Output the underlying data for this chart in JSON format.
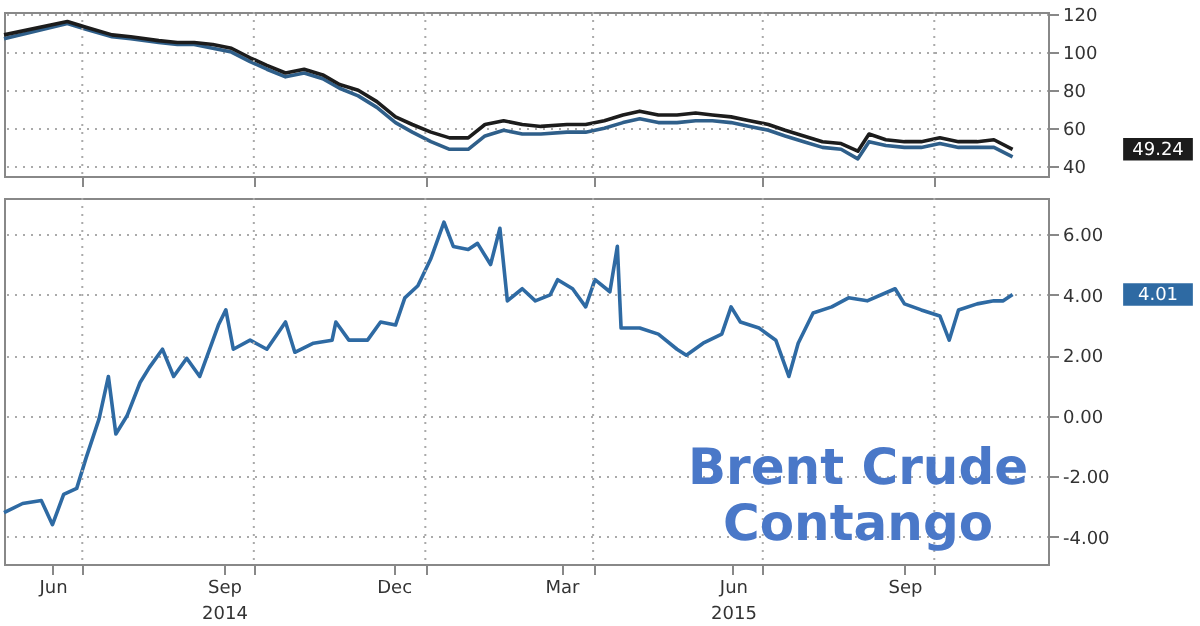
{
  "chart_data": [
    {
      "type": "line",
      "x": [
        "2014-05-20",
        "2014-06-23",
        "2014-07-03",
        "2014-07-17",
        "2014-07-27",
        "2014-08-11",
        "2014-08-21",
        "2014-08-30",
        "2014-09-09",
        "2014-09-19",
        "2014-09-29",
        "2014-10-08",
        "2014-10-18",
        "2014-10-28",
        "2014-11-07",
        "2014-11-16",
        "2014-11-26",
        "2014-12-06",
        "2014-12-16",
        "2014-12-25",
        "2015-01-04",
        "2015-01-14",
        "2015-01-24",
        "2015-02-02",
        "2015-02-12",
        "2015-02-22",
        "2015-03-04",
        "2015-03-18",
        "2015-03-28",
        "2015-04-07",
        "2015-04-17",
        "2015-04-26",
        "2015-05-06",
        "2015-05-16",
        "2015-05-26",
        "2015-06-04",
        "2015-06-14",
        "2015-06-24",
        "2015-07-04",
        "2015-07-13",
        "2015-07-23",
        "2015-08-02",
        "2015-08-12",
        "2015-08-21",
        "2015-08-27",
        "2015-09-05",
        "2015-09-15",
        "2015-09-24",
        "2015-10-04",
        "2015-10-14",
        "2015-10-24",
        "2015-11-02",
        "2015-11-12"
      ],
      "series": [
        {
          "color": "#2f5f8a",
          "values": [
            107,
            115,
            112,
            108,
            107,
            105,
            104,
            104,
            102,
            100,
            95,
            91,
            87,
            89,
            86,
            81,
            77,
            71,
            63,
            58,
            53,
            49,
            49,
            56,
            59,
            57,
            57,
            58,
            58,
            60,
            63,
            65,
            63,
            63,
            64,
            64,
            63,
            61,
            59,
            56,
            53,
            50,
            49,
            44,
            53,
            51,
            50,
            50,
            52,
            50,
            50,
            50,
            45
          ]
        },
        {
          "color": "#1c1c1c",
          "values": [
            109,
            116,
            113,
            109,
            108,
            106,
            105,
            105,
            104,
            102,
            97,
            93,
            89,
            91,
            88,
            83,
            80,
            74,
            66,
            62,
            58,
            55,
            55,
            62,
            64,
            62,
            61,
            62,
            62,
            64,
            67,
            69,
            67,
            67,
            68,
            67,
            66,
            64,
            62,
            59,
            56,
            53,
            52,
            48,
            57,
            54,
            53,
            53,
            55,
            53,
            53,
            54,
            49
          ]
        }
      ],
      "xlim": [
        "2014-05-20",
        "2015-12-01"
      ],
      "ylim": [
        35,
        121
      ],
      "yticks": [
        40,
        60,
        80,
        100,
        120
      ],
      "xticks": [
        {
          "value": "2014-07-01",
          "label": null
        },
        {
          "value": "2014-10-01",
          "label": null
        },
        {
          "value": "2015-01-01",
          "label": null
        },
        {
          "value": "2015-04-01",
          "label": null
        },
        {
          "value": "2015-07-01",
          "label": null
        },
        {
          "value": "2015-10-01",
          "label": null
        }
      ],
      "grid": true,
      "tick_labels": "y",
      "annotations": [
        "49.24"
      ]
    },
    {
      "type": "line",
      "x": [
        "2014-05-20",
        "2014-05-30",
        "2014-06-09",
        "2014-06-15",
        "2014-06-21",
        "2014-06-28",
        "2014-07-03",
        "2014-07-10",
        "2014-07-15",
        "2014-07-19",
        "2014-07-25",
        "2014-08-01",
        "2014-08-06",
        "2014-08-13",
        "2014-08-19",
        "2014-08-26",
        "2014-09-02",
        "2014-09-12",
        "2014-09-16",
        "2014-09-20",
        "2014-09-29",
        "2014-10-08",
        "2014-10-18",
        "2014-10-23",
        "2014-11-02",
        "2014-11-12",
        "2014-11-14",
        "2014-11-21",
        "2014-12-01",
        "2014-12-08",
        "2014-12-16",
        "2014-12-21",
        "2014-12-28",
        "2015-01-04",
        "2015-01-11",
        "2015-01-16",
        "2015-01-24",
        "2015-01-29",
        "2015-02-05",
        "2015-02-10",
        "2015-02-14",
        "2015-02-22",
        "2015-03-01",
        "2015-03-09",
        "2015-03-13",
        "2015-03-21",
        "2015-03-28",
        "2015-04-02",
        "2015-04-10",
        "2015-04-14",
        "2015-04-16",
        "2015-04-26",
        "2015-05-06",
        "2015-05-16",
        "2015-05-21",
        "2015-05-30",
        "2015-06-09",
        "2015-06-14",
        "2015-06-19",
        "2015-06-29",
        "2015-07-08",
        "2015-07-15",
        "2015-07-20",
        "2015-07-28",
        "2015-08-07",
        "2015-08-16",
        "2015-08-26",
        "2015-09-10",
        "2015-09-15",
        "2015-09-24",
        "2015-10-04",
        "2015-10-09",
        "2015-10-14",
        "2015-10-24",
        "2015-11-02",
        "2015-11-07",
        "2015-11-12"
      ],
      "series": [
        {
          "color": "#2e6aa3",
          "values": [
            -3.2,
            -2.9,
            -2.8,
            -3.6,
            -2.6,
            -2.4,
            -1.4,
            -0.1,
            1.3,
            -0.6,
            0,
            1.1,
            1.6,
            2.2,
            1.3,
            1.9,
            1.3,
            3.0,
            3.5,
            2.2,
            2.5,
            2.2,
            3.1,
            2.1,
            2.4,
            2.5,
            3.1,
            2.5,
            2.5,
            3.1,
            3.0,
            3.9,
            4.3,
            5.2,
            6.4,
            5.6,
            5.5,
            5.7,
            5.0,
            6.2,
            3.8,
            4.2,
            3.8,
            4.0,
            4.5,
            4.2,
            3.6,
            4.5,
            4.1,
            5.6,
            2.9,
            2.9,
            2.7,
            2.2,
            2.0,
            2.4,
            2.7,
            3.6,
            3.1,
            2.9,
            2.5,
            1.3,
            2.4,
            3.4,
            3.6,
            3.9,
            3.8,
            4.2,
            3.7,
            3.5,
            3.3,
            2.5,
            3.5,
            3.7,
            3.8,
            3.8,
            4.01
          ]
        }
      ],
      "xlim": [
        "2014-05-20",
        "2015-12-01"
      ],
      "ylim": [
        -4.9,
        7.2
      ],
      "yticks": [
        {
          "value": -4,
          "label": "-4.00"
        },
        {
          "value": -2,
          "label": "-2.00"
        },
        {
          "value": 0,
          "label": "0.00"
        },
        {
          "value": 2,
          "label": "2.00"
        },
        {
          "value": 4,
          "label": "4.00"
        },
        {
          "value": 6,
          "label": "6.00"
        }
      ],
      "xticks": [
        {
          "value": "2014-06-15",
          "label": "Jun"
        },
        {
          "value": "2014-07-01",
          "label": null
        },
        {
          "value": "2014-09-15",
          "label": "Sep\n2014"
        },
        {
          "value": "2014-10-01",
          "label": null
        },
        {
          "value": "2014-12-15",
          "label": "Dec"
        },
        {
          "value": "2015-01-01",
          "label": null
        },
        {
          "value": "2015-03-15",
          "label": "Mar"
        },
        {
          "value": "2015-04-01",
          "label": null
        },
        {
          "value": "2015-06-15",
          "label": "Jun\n2015"
        },
        {
          "value": "2015-07-01",
          "label": null
        },
        {
          "value": "2015-09-15",
          "label": "Sep"
        },
        {
          "value": "2015-10-01",
          "label": null
        }
      ],
      "grid": true,
      "annotations": [
        "4.01",
        "Brent Crude\nContango"
      ]
    }
  ]
}
